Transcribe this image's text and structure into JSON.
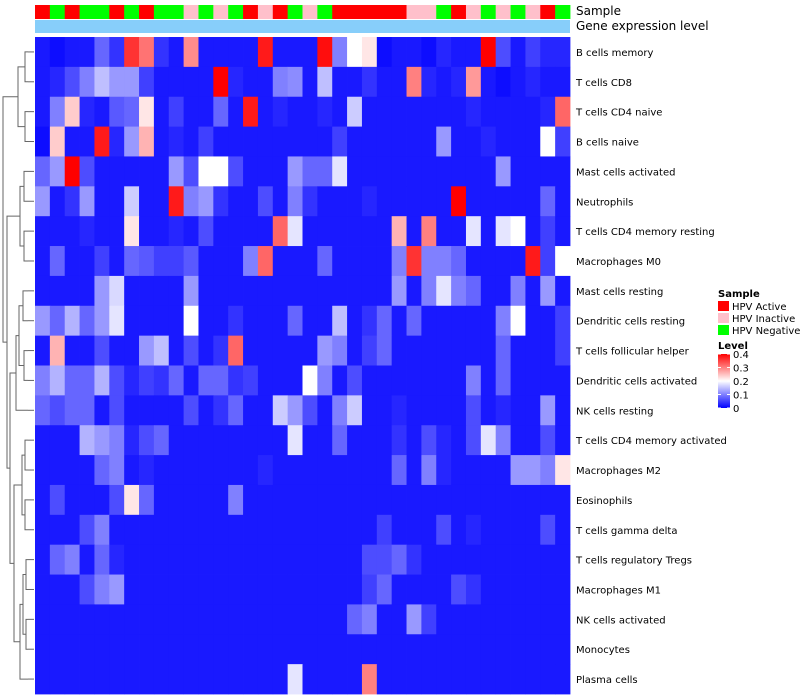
{
  "chart_data": {
    "type": "heatmap",
    "title": "",
    "annotation_tracks": {
      "sample_label": "Sample",
      "expression_label": "Gene expression level"
    },
    "columns": 36,
    "sample_groups": [
      "HPV Active",
      "HPV Negative",
      "HPV Active",
      "HPV Negative",
      "HPV Negative",
      "HPV Active",
      "HPV Negative",
      "HPV Active",
      "HPV Negative",
      "HPV Negative",
      "HPV Inactive",
      "HPV Negative",
      "HPV Inactive",
      "HPV Negative",
      "HPV Active",
      "HPV Inactive",
      "HPV Active",
      "HPV Negative",
      "HPV Inactive",
      "HPV Negative",
      "HPV Active",
      "HPV Active",
      "HPV Active",
      "HPV Active",
      "HPV Active",
      "HPV Inactive",
      "HPV Inactive",
      "HPV Negative",
      "HPV Active",
      "HPV Inactive",
      "HPV Negative",
      "HPV Inactive",
      "HPV Negative",
      "HPV Inactive",
      "HPV Active",
      "HPV Negative"
    ],
    "rows": [
      "B cells memory",
      "T cells CD8",
      "T cells CD4 naive",
      "B cells naive",
      "Mast cells activated",
      "Neutrophils",
      "T cells CD4 memory resting",
      "Macrophages M0",
      "Mast cells resting",
      "Dendritic cells resting",
      "T cells follicular helper",
      "Dendritic cells activated",
      "NK cells resting",
      "T cells CD4 memory activated",
      "Macrophages M2",
      "Eosinophils",
      "T cells gamma delta",
      "T cells regulatory  Tregs",
      "Macrophages M1",
      "NK cells activated",
      "Monocytes",
      "Plasma cells"
    ],
    "legend": {
      "sample_title": "Sample",
      "sample_entries": [
        {
          "label": "HPV Active",
          "color": "#ff0000"
        },
        {
          "label": "HPV Inactive",
          "color": "#ffc0cb"
        },
        {
          "label": "HPV Negative",
          "color": "#00ff00"
        }
      ],
      "level_title": "Level",
      "level_ticks": [
        "0.4",
        "0.3",
        "0.2",
        "0.1",
        "0"
      ],
      "level_range": [
        0,
        0.4
      ],
      "color_low": "#0000ff",
      "color_mid": "#ffffff",
      "color_high": "#ff0000",
      "expression_bar_color": "#87cefa"
    },
    "values": [
      [
        0.02,
        0.01,
        0.02,
        0.02,
        0.08,
        0.04,
        0.36,
        0.31,
        0.04,
        0.02,
        0.29,
        0.02,
        0.02,
        0.02,
        0.02,
        0.38,
        0.02,
        0.02,
        0.02,
        0.39,
        0.1,
        0.2,
        0.22,
        0.01,
        0.02,
        0.02,
        0.01,
        0.03,
        0.02,
        0.02,
        0.4,
        0.06,
        0.02,
        0.05,
        0.03,
        0.03
      ],
      [
        0.02,
        0.03,
        0.06,
        0.1,
        0.15,
        0.12,
        0.12,
        0.05,
        0.02,
        0.02,
        0.02,
        0.02,
        0.4,
        0.03,
        0.02,
        0.02,
        0.1,
        0.11,
        0.02,
        0.15,
        0.02,
        0.02,
        0.04,
        0.02,
        0.02,
        0.3,
        0.03,
        0.02,
        0.03,
        0.28,
        0.02,
        0.01,
        0.02,
        0.03,
        0.02,
        0.02
      ],
      [
        0.02,
        0.1,
        0.24,
        0.03,
        0.02,
        0.07,
        0.08,
        0.22,
        0.02,
        0.05,
        0.02,
        0.02,
        0.08,
        0.02,
        0.38,
        0.02,
        0.03,
        0.02,
        0.02,
        0.03,
        0.02,
        0.16,
        0.02,
        0.02,
        0.02,
        0.02,
        0.02,
        0.02,
        0.02,
        0.03,
        0.02,
        0.02,
        0.02,
        0.02,
        0.03,
        0.32
      ],
      [
        0.01,
        0.24,
        0.02,
        0.02,
        0.38,
        0.03,
        0.12,
        0.26,
        0.02,
        0.03,
        0.02,
        0.05,
        0.02,
        0.02,
        0.02,
        0.02,
        0.02,
        0.02,
        0.02,
        0.02,
        0.05,
        0.02,
        0.02,
        0.02,
        0.02,
        0.02,
        0.02,
        0.12,
        0.02,
        0.02,
        0.03,
        0.02,
        0.02,
        0.02,
        0.2,
        0.05
      ],
      [
        0.08,
        0.12,
        0.4,
        0.06,
        0.02,
        0.02,
        0.02,
        0.02,
        0.02,
        0.12,
        0.06,
        0.2,
        0.2,
        0.06,
        0.02,
        0.02,
        0.02,
        0.12,
        0.08,
        0.08,
        0.18,
        0.02,
        0.02,
        0.02,
        0.02,
        0.02,
        0.02,
        0.02,
        0.02,
        0.02,
        0.02,
        0.12,
        0.02,
        0.02,
        0.02,
        0.02
      ],
      [
        0.12,
        0.02,
        0.04,
        0.12,
        0.02,
        0.02,
        0.16,
        0.02,
        0.02,
        0.38,
        0.1,
        0.12,
        0.04,
        0.02,
        0.02,
        0.06,
        0.02,
        0.1,
        0.04,
        0.02,
        0.02,
        0.02,
        0.03,
        0.02,
        0.02,
        0.02,
        0.02,
        0.02,
        0.4,
        0.02,
        0.02,
        0.02,
        0.02,
        0.02,
        0.08,
        0.02
      ],
      [
        0.02,
        0.02,
        0.02,
        0.03,
        0.02,
        0.02,
        0.22,
        0.02,
        0.02,
        0.03,
        0.02,
        0.06,
        0.02,
        0.02,
        0.02,
        0.02,
        0.32,
        0.18,
        0.02,
        0.02,
        0.02,
        0.02,
        0.02,
        0.02,
        0.26,
        0.02,
        0.3,
        0.02,
        0.02,
        0.18,
        0.02,
        0.18,
        0.2,
        0.02,
        0.05,
        0.02
      ],
      [
        0.02,
        0.08,
        0.02,
        0.02,
        0.05,
        0.02,
        0.08,
        0.07,
        0.05,
        0.05,
        0.07,
        0.02,
        0.02,
        0.02,
        0.1,
        0.32,
        0.02,
        0.02,
        0.02,
        0.08,
        0.02,
        0.02,
        0.02,
        0.02,
        0.1,
        0.36,
        0.1,
        0.1,
        0.08,
        0.02,
        0.02,
        0.02,
        0.02,
        0.38,
        0.05,
        0.2
      ],
      [
        0.02,
        0.02,
        0.02,
        0.02,
        0.12,
        0.17,
        0.02,
        0.02,
        0.02,
        0.02,
        0.12,
        0.02,
        0.02,
        0.02,
        0.02,
        0.02,
        0.02,
        0.02,
        0.02,
        0.02,
        0.02,
        0.02,
        0.02,
        0.02,
        0.12,
        0.02,
        0.1,
        0.18,
        0.1,
        0.08,
        0.02,
        0.02,
        0.1,
        0.02,
        0.12,
        0.02
      ],
      [
        0.12,
        0.08,
        0.14,
        0.08,
        0.12,
        0.18,
        0.02,
        0.02,
        0.02,
        0.02,
        0.2,
        0.02,
        0.02,
        0.04,
        0.02,
        0.02,
        0.02,
        0.08,
        0.02,
        0.02,
        0.15,
        0.02,
        0.04,
        0.08,
        0.02,
        0.08,
        0.02,
        0.02,
        0.02,
        0.02,
        0.02,
        0.1,
        0.2,
        0.02,
        0.02,
        0.05
      ],
      [
        0.02,
        0.26,
        0.02,
        0.02,
        0.06,
        0.02,
        0.02,
        0.12,
        0.15,
        0.02,
        0.06,
        0.02,
        0.04,
        0.32,
        0.02,
        0.02,
        0.02,
        0.02,
        0.02,
        0.12,
        0.1,
        0.02,
        0.05,
        0.08,
        0.02,
        0.02,
        0.02,
        0.02,
        0.02,
        0.02,
        0.02,
        0.08,
        0.02,
        0.02,
        0.02,
        0.05
      ],
      [
        0.1,
        0.14,
        0.08,
        0.08,
        0.14,
        0.06,
        0.03,
        0.05,
        0.04,
        0.08,
        0.02,
        0.08,
        0.08,
        0.04,
        0.05,
        0.02,
        0.02,
        0.02,
        0.2,
        0.1,
        0.02,
        0.06,
        0.02,
        0.02,
        0.02,
        0.02,
        0.02,
        0.02,
        0.02,
        0.1,
        0.02,
        0.08,
        0.02,
        0.02,
        0.02,
        0.02
      ],
      [
        0.08,
        0.06,
        0.08,
        0.08,
        0.02,
        0.06,
        0.02,
        0.02,
        0.02,
        0.02,
        0.06,
        0.02,
        0.04,
        0.08,
        0.02,
        0.02,
        0.16,
        0.12,
        0.06,
        0.02,
        0.1,
        0.16,
        0.02,
        0.02,
        0.03,
        0.02,
        0.02,
        0.02,
        0.02,
        0.06,
        0.02,
        0.03,
        0.02,
        0.02,
        0.12,
        0.02
      ],
      [
        0.02,
        0.02,
        0.02,
        0.14,
        0.12,
        0.1,
        0.03,
        0.06,
        0.08,
        0.02,
        0.02,
        0.02,
        0.02,
        0.02,
        0.02,
        0.02,
        0.02,
        0.18,
        0.02,
        0.02,
        0.08,
        0.02,
        0.02,
        0.02,
        0.04,
        0.02,
        0.06,
        0.03,
        0.02,
        0.06,
        0.18,
        0.1,
        0.02,
        0.02,
        0.06,
        0.02
      ],
      [
        0.02,
        0.02,
        0.02,
        0.02,
        0.08,
        0.1,
        0.02,
        0.03,
        0.02,
        0.02,
        0.02,
        0.02,
        0.02,
        0.02,
        0.02,
        0.03,
        0.02,
        0.02,
        0.02,
        0.02,
        0.02,
        0.02,
        0.02,
        0.02,
        0.08,
        0.02,
        0.1,
        0.03,
        0.02,
        0.02,
        0.02,
        0.02,
        0.12,
        0.12,
        0.1,
        0.22
      ],
      [
        0.02,
        0.06,
        0.02,
        0.02,
        0.02,
        0.06,
        0.22,
        0.08,
        0.02,
        0.02,
        0.02,
        0.02,
        0.02,
        0.1,
        0.02,
        0.02,
        0.02,
        0.02,
        0.02,
        0.02,
        0.02,
        0.02,
        0.02,
        0.02,
        0.02,
        0.02,
        0.02,
        0.02,
        0.02,
        0.02,
        0.02,
        0.02,
        0.02,
        0.02,
        0.02,
        0.02
      ],
      [
        0.02,
        0.02,
        0.02,
        0.06,
        0.1,
        0.02,
        0.02,
        0.02,
        0.02,
        0.02,
        0.02,
        0.02,
        0.02,
        0.02,
        0.02,
        0.02,
        0.02,
        0.02,
        0.02,
        0.02,
        0.02,
        0.02,
        0.02,
        0.05,
        0.02,
        0.02,
        0.02,
        0.06,
        0.02,
        0.03,
        0.02,
        0.02,
        0.02,
        0.02,
        0.06,
        0.02
      ],
      [
        0.02,
        0.08,
        0.1,
        0.02,
        0.08,
        0.03,
        0.02,
        0.02,
        0.02,
        0.02,
        0.02,
        0.02,
        0.02,
        0.02,
        0.02,
        0.02,
        0.02,
        0.02,
        0.02,
        0.02,
        0.02,
        0.02,
        0.06,
        0.06,
        0.08,
        0.04,
        0.02,
        0.02,
        0.02,
        0.02,
        0.02,
        0.02,
        0.02,
        0.02,
        0.02,
        0.02
      ],
      [
        0.02,
        0.02,
        0.02,
        0.06,
        0.1,
        0.12,
        0.02,
        0.02,
        0.02,
        0.02,
        0.02,
        0.02,
        0.02,
        0.02,
        0.02,
        0.02,
        0.02,
        0.02,
        0.02,
        0.02,
        0.02,
        0.02,
        0.05,
        0.08,
        0.02,
        0.02,
        0.02,
        0.02,
        0.06,
        0.04,
        0.02,
        0.02,
        0.02,
        0.02,
        0.02,
        0.02
      ],
      [
        0.02,
        0.02,
        0.02,
        0.02,
        0.02,
        0.02,
        0.02,
        0.02,
        0.02,
        0.02,
        0.02,
        0.02,
        0.02,
        0.02,
        0.02,
        0.02,
        0.02,
        0.02,
        0.02,
        0.02,
        0.02,
        0.08,
        0.1,
        0.02,
        0.02,
        0.12,
        0.05,
        0.02,
        0.02,
        0.02,
        0.02,
        0.02,
        0.02,
        0.02,
        0.02,
        0.02
      ],
      [
        0.02,
        0.02,
        0.02,
        0.02,
        0.02,
        0.02,
        0.02,
        0.02,
        0.02,
        0.02,
        0.02,
        0.02,
        0.02,
        0.02,
        0.02,
        0.02,
        0.02,
        0.02,
        0.02,
        0.02,
        0.02,
        0.02,
        0.02,
        0.02,
        0.02,
        0.02,
        0.02,
        0.02,
        0.02,
        0.02,
        0.02,
        0.02,
        0.02,
        0.02,
        0.02,
        0.02
      ],
      [
        0.02,
        0.02,
        0.02,
        0.02,
        0.02,
        0.02,
        0.02,
        0.02,
        0.02,
        0.02,
        0.02,
        0.02,
        0.02,
        0.02,
        0.02,
        0.02,
        0.02,
        0.18,
        0.02,
        0.02,
        0.02,
        0.02,
        0.3,
        0.02,
        0.02,
        0.02,
        0.02,
        0.02,
        0.02,
        0.02,
        0.02,
        0.02,
        0.02,
        0.02,
        0.02,
        0.02
      ]
    ]
  }
}
